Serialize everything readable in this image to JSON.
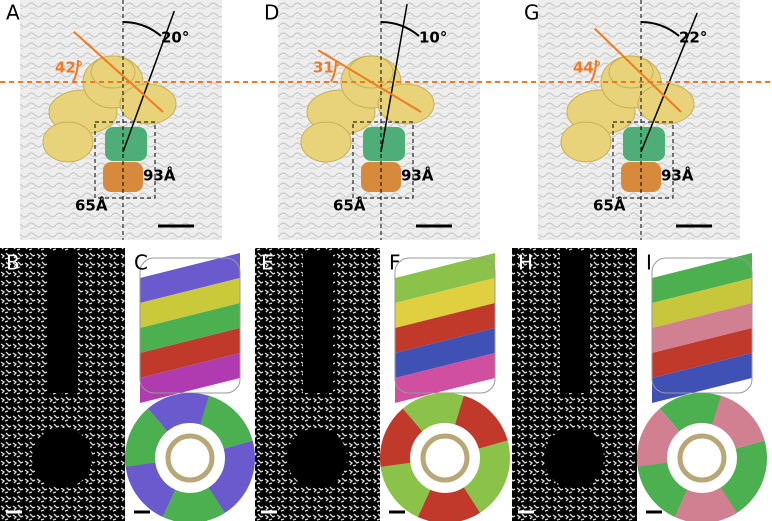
{
  "top_panels": [
    {
      "letter": "A",
      "left_angle": "42°",
      "right_angle": "20°",
      "long_length": "93Å",
      "short_length": "65Å"
    },
    {
      "letter": "D",
      "left_angle": "31°",
      "right_angle": "10°",
      "long_length": "93Å",
      "short_length": "65Å"
    },
    {
      "letter": "G",
      "left_angle": "44°",
      "right_angle": "22°",
      "long_length": "93Å",
      "short_length": "65Å"
    }
  ],
  "bottom_panels": [
    {
      "letter": "B"
    },
    {
      "letter": "C"
    },
    {
      "letter": "E"
    },
    {
      "letter": "F"
    },
    {
      "letter": "H"
    },
    {
      "letter": "I"
    }
  ]
}
